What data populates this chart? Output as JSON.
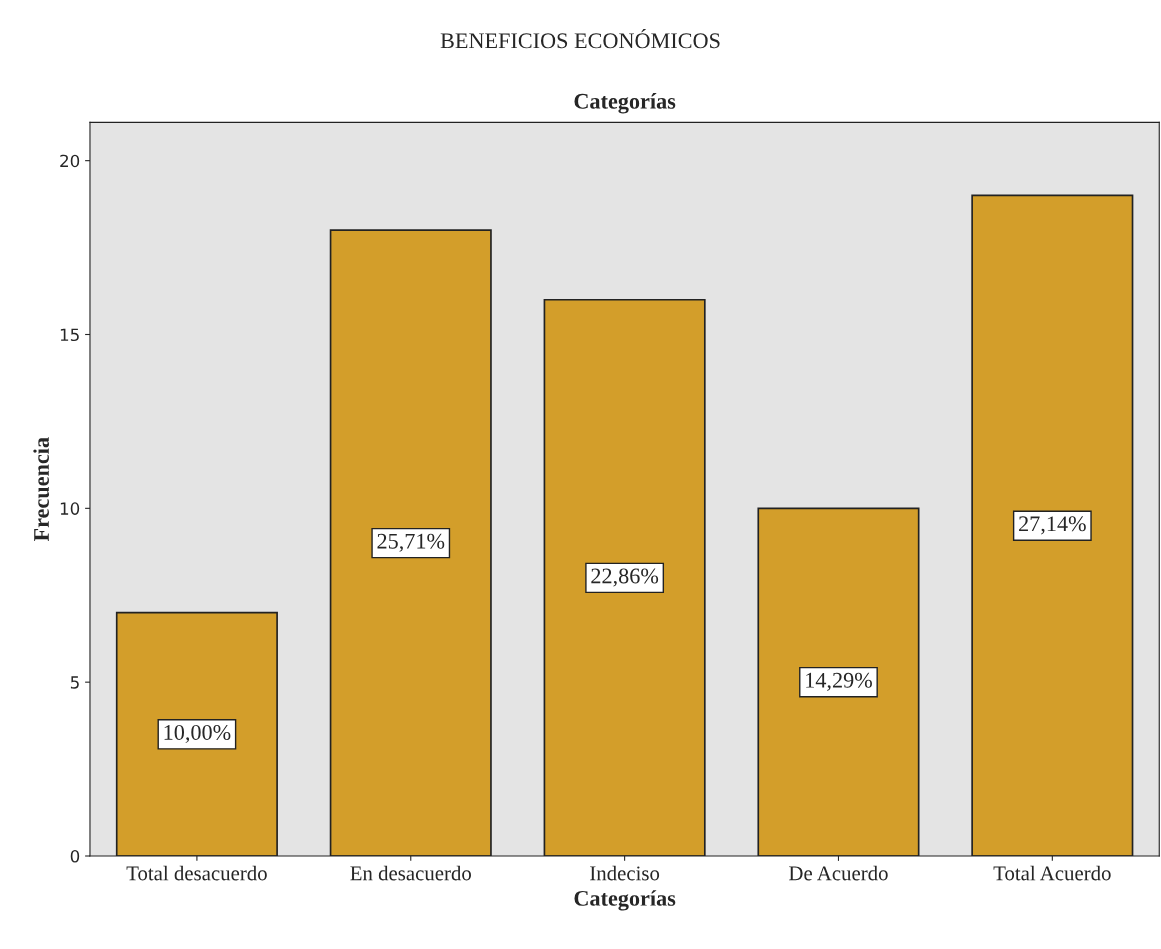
{
  "chart_data": {
    "type": "bar",
    "title": "BENEFICIOS ECONÓMICOS",
    "subtitle": "Categorías",
    "xlabel": "Categorías",
    "ylabel": "Frecuencia",
    "categories": [
      "Total desacuerdo",
      "En desacuerdo",
      "Indeciso",
      "De Acuerdo",
      "Total Acuerdo"
    ],
    "values": [
      7,
      18,
      16,
      10,
      19
    ],
    "annotations": [
      "10,00%",
      "25,71%",
      "22,86%",
      "14,29%",
      "27,14%"
    ],
    "color": "#d39e2a",
    "ylim": [
      0,
      21.1
    ],
    "yticks": [
      0,
      5,
      10,
      15,
      20
    ],
    "grid": false
  }
}
